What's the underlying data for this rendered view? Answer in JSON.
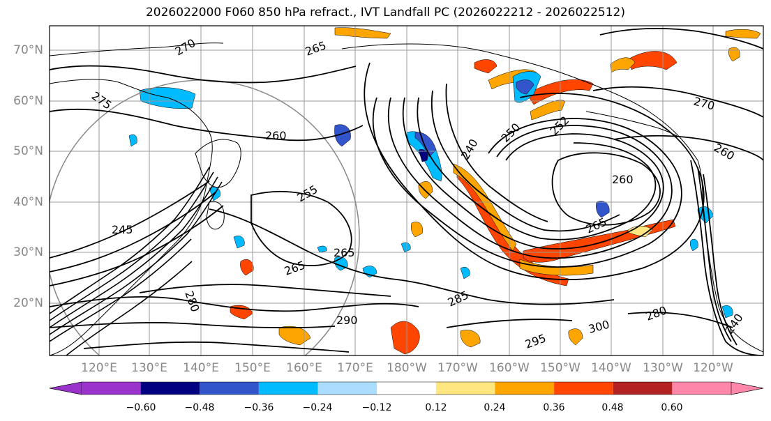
{
  "title": "2026022000 F060 850 hPa refract., IVT Landfall PC (2026022212 - 2026022512)",
  "latitude_labels": [
    "70°N",
    "60°N",
    "50°N",
    "40°N",
    "30°N",
    "20°N"
  ],
  "longitude_labels": [
    "120°E",
    "130°E",
    "140°E",
    "150°E",
    "160°E",
    "170°E",
    "180°W",
    "170°W",
    "160°W",
    "150°W",
    "140°W",
    "130°W",
    "120°W"
  ],
  "contour_labels": [
    "270",
    "265",
    "275",
    "260",
    "255",
    "245",
    "240",
    "250",
    "252",
    "280",
    "285",
    "290",
    "295",
    "300"
  ],
  "colorbar": {
    "tick_labels": [
      "−0.60",
      "−0.48",
      "−0.36",
      "−0.24",
      "−0.12",
      "0.12",
      "0.24",
      "0.36",
      "0.48",
      "0.60"
    ],
    "colors": [
      "#9933cc",
      "#000080",
      "#3355cc",
      "#00bbff",
      "#aaddff",
      "#ffffff",
      "#ffe680",
      "#ffa500",
      "#ff4500",
      "#b22222",
      "#ff88aa",
      "#ff88aa"
    ]
  },
  "shading_colors": {
    "strong_negative": "#3355cc",
    "negative": "#00bbff",
    "weak_negative": "#aaddff",
    "weak_positive": "#ffe680",
    "positive": "#ffa500",
    "strong_positive": "#ff4500"
  }
}
